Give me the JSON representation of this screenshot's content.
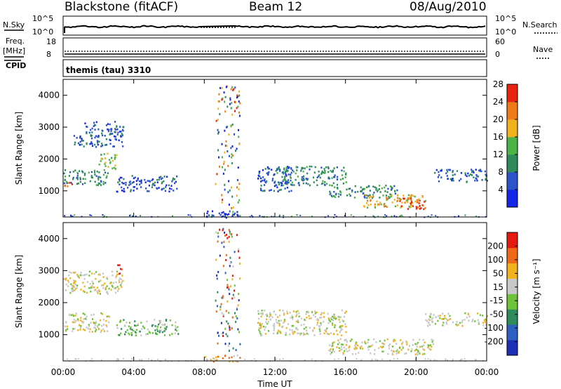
{
  "header": {
    "station": "Blackstone (fitACF)",
    "beam": "Beam 12",
    "date": "08/Aug/2010"
  },
  "summary": {
    "nsky_label": "N.Sky",
    "nsky_ticks": [
      "10^5",
      "10^0"
    ],
    "nsearch_label": "N.Search",
    "nsearch_ticks": [
      "10^5",
      "10^0"
    ],
    "freq_label": "Freq.",
    "freq_unit": "[MHz]",
    "freq_ticks": [
      "18",
      "8"
    ],
    "nave_label": "Nave",
    "nave_ticks": [
      "60",
      "0"
    ],
    "cpid_label": "CPID",
    "cpid_value": "themis (tau) 3310"
  },
  "chart_data": [
    {
      "type": "heatmap",
      "parameter": "power",
      "ylabel": "Slant Range [km]",
      "ylim": [
        180,
        4500
      ],
      "yticks": [
        "1000",
        "2000",
        "3000",
        "4000"
      ],
      "xlim_hours": [
        0,
        24
      ],
      "colorbar": {
        "label": "Power [dB]",
        "ticks": [
          "4",
          "8",
          "12",
          "16",
          "20",
          "24",
          "28"
        ],
        "colors": [
          "#1426e6",
          "#2b54c8",
          "#2f8a5c",
          "#4cb447",
          "#f2b21e",
          "#ee7a18",
          "#e8230f"
        ]
      },
      "echo_regions": [
        {
          "t": [
            0.5,
            1.0
          ],
          "r": [
            2400,
            2800
          ],
          "level": 1
        },
        {
          "t": [
            1.0,
            3.4
          ],
          "r": [
            2400,
            3200
          ],
          "level": 1
        },
        {
          "t": [
            0.0,
            0.8
          ],
          "r": [
            1150,
            1300
          ],
          "level": 6
        },
        {
          "t": [
            0.0,
            2.5
          ],
          "r": [
            1200,
            1700
          ],
          "level": 2
        },
        {
          "t": [
            2.0,
            3.0
          ],
          "r": [
            1700,
            2200
          ],
          "level": 3
        },
        {
          "t": [
            3.0,
            6.5
          ],
          "r": [
            1000,
            1500
          ],
          "level": 1
        },
        {
          "t": [
            8.0,
            10.0
          ],
          "r": [
            180,
            400
          ],
          "level": 0
        },
        {
          "t": [
            11.0,
            13.0
          ],
          "r": [
            1000,
            1800
          ],
          "level": 1
        },
        {
          "t": [
            12.0,
            16.0
          ],
          "r": [
            1200,
            1800
          ],
          "level": 2
        },
        {
          "t": [
            15.0,
            19.0
          ],
          "r": [
            800,
            1200
          ],
          "level": 2
        },
        {
          "t": [
            17.0,
            20.5
          ],
          "r": [
            500,
            900
          ],
          "level": 4
        },
        {
          "t": [
            19.0,
            20.5
          ],
          "r": [
            450,
            800
          ],
          "level": 6
        },
        {
          "t": [
            21.0,
            24.0
          ],
          "r": [
            1300,
            1700
          ],
          "level": 1
        }
      ]
    },
    {
      "type": "heatmap",
      "parameter": "velocity",
      "ylabel": "Slant Range [km]",
      "ylim": [
        180,
        4500
      ],
      "yticks": [
        "1000",
        "2000",
        "3000",
        "4000"
      ],
      "xlim_hours": [
        0,
        24
      ],
      "colorbar": {
        "label": "Velocity [m s⁻¹]",
        "ticks": [
          "200",
          "100",
          "50",
          "15",
          "-15",
          "-50",
          "-100",
          "-200"
        ],
        "colors": [
          "#1c2fb4",
          "#2f5fc0",
          "#2f8a5c",
          "#6fc33a",
          "#c8c8c8",
          "#f2b21e",
          "#ee6a18",
          "#e41a0f"
        ]
      },
      "echo_regions": [
        {
          "t": [
            0.0,
            3.4
          ],
          "r": [
            2300,
            3000
          ],
          "level": 4
        },
        {
          "t": [
            3.0,
            3.3
          ],
          "r": [
            2850,
            3200
          ],
          "level": 7
        },
        {
          "t": [
            0.0,
            2.6
          ],
          "r": [
            1100,
            1700
          ],
          "level": 4
        },
        {
          "t": [
            3.0,
            6.5
          ],
          "r": [
            1000,
            1500
          ],
          "level": 3
        },
        {
          "t": [
            8.0,
            10.0
          ],
          "r": [
            180,
            400
          ],
          "level": 5
        },
        {
          "t": [
            11.0,
            16.0
          ],
          "r": [
            1000,
            1800
          ],
          "level": 4
        },
        {
          "t": [
            15.0,
            21.0
          ],
          "r": [
            400,
            900
          ],
          "level": 4
        },
        {
          "t": [
            20.5,
            24.0
          ],
          "r": [
            1300,
            1700
          ],
          "level": 4
        }
      ]
    }
  ],
  "time_axis": {
    "ticks": [
      "00:00",
      "04:00",
      "08:00",
      "12:00",
      "16:00",
      "20:00",
      "00:00"
    ],
    "label": "Time UT"
  }
}
